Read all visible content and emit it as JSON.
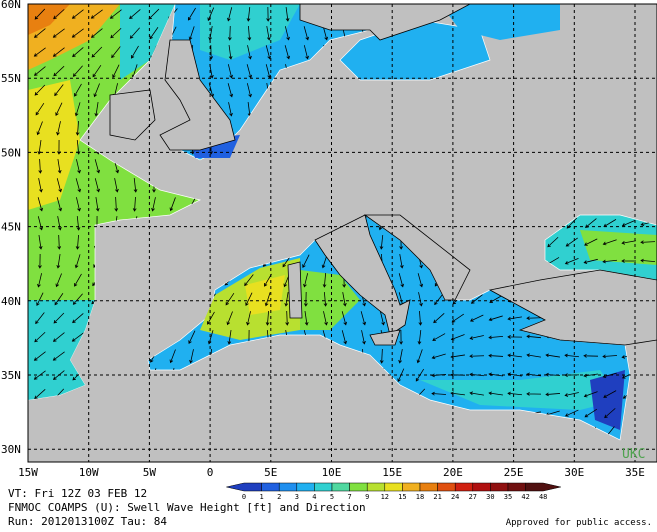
{
  "map": {
    "lat_labels": [
      "60N",
      "55N",
      "50N",
      "45N",
      "40N",
      "35N",
      "30N"
    ],
    "lon_labels": [
      "15W",
      "10W",
      "5W",
      "0",
      "5E",
      "10E",
      "15E",
      "20E",
      "25E",
      "30E",
      "35E"
    ],
    "watermark": "UKC",
    "colorbar": {
      "labels": [
        "0",
        "1",
        "2",
        "3",
        "4",
        "5",
        "7",
        "9",
        "12",
        "15",
        "18",
        "21",
        "24",
        "27",
        "30",
        "35",
        "42",
        "48"
      ],
      "colors": [
        "#1f3fbf",
        "#2060e0",
        "#1f8fef",
        "#20b0f0",
        "#30d0d0",
        "#50d8a0",
        "#80e040",
        "#b8e030",
        "#e8e020",
        "#f0b020",
        "#e88010",
        "#e05010",
        "#d02010",
        "#b01010",
        "#901010",
        "#701010",
        "#501010"
      ]
    }
  },
  "footer": {
    "valid_time": "VT: Fri 12Z 03 FEB 12",
    "product": "FNMOC COAMPS (U): Swell Wave Height [ft] and Direction",
    "run": "Run: 2012013100Z Tau: 84",
    "approval": "Approved for public access."
  }
}
